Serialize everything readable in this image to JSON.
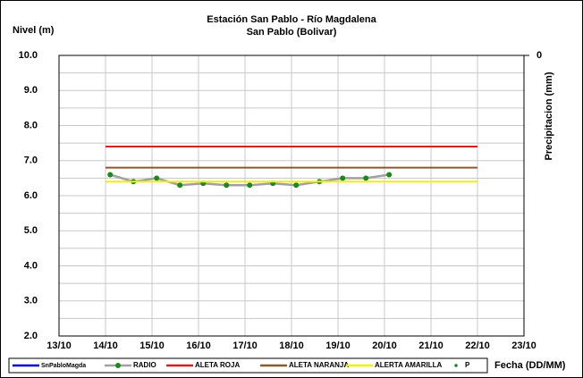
{
  "chart_data": {
    "type": "line",
    "title": "Estación San Pablo - Río Magdalena",
    "subtitle": "San Pablo (Bolivar)",
    "y_label": "Nivel (m)",
    "y2_label": "Precipitacion (mm)",
    "x_label": "Fecha (DD/MM)",
    "xlim": [
      13,
      23
    ],
    "xticks": [
      {
        "value": 13,
        "label": "13/10"
      },
      {
        "value": 14,
        "label": "14/10"
      },
      {
        "value": 15,
        "label": "15/10"
      },
      {
        "value": 16,
        "label": "16/10"
      },
      {
        "value": 17,
        "label": "17/10"
      },
      {
        "value": 18,
        "label": "18/10"
      },
      {
        "value": 19,
        "label": "19/10"
      },
      {
        "value": 20,
        "label": "20/10"
      },
      {
        "value": 21,
        "label": "21/10"
      },
      {
        "value": 22,
        "label": "22/10"
      },
      {
        "value": 23,
        "label": "23/10"
      }
    ],
    "ylim": [
      2,
      10
    ],
    "yticks": [
      {
        "value": 2,
        "label": "2.0"
      },
      {
        "value": 3,
        "label": "3.0"
      },
      {
        "value": 4,
        "label": "4.0"
      },
      {
        "value": 5,
        "label": "5.0"
      },
      {
        "value": 6,
        "label": "6.0"
      },
      {
        "value": 7,
        "label": "7.0"
      },
      {
        "value": 8,
        "label": "8.0"
      },
      {
        "value": 9,
        "label": "9.0"
      },
      {
        "value": 10,
        "label": "10.0"
      }
    ],
    "y2ticks": [
      0
    ],
    "grid": true,
    "legend": "bottom",
    "series": [
      {
        "name": "SnPabloMagda",
        "color": "#0000cc",
        "x": [],
        "values": []
      },
      {
        "name": "RADIO",
        "color": "#a0a0a0",
        "marker_color": "#1a8a1a",
        "x": [
          14.1,
          14.6,
          15.1,
          15.6,
          16.1,
          16.6,
          17.1,
          17.6,
          18.1,
          18.6,
          19.1,
          19.6,
          20.1
        ],
        "values": [
          6.6,
          6.4,
          6.5,
          6.3,
          6.35,
          6.3,
          6.3,
          6.35,
          6.3,
          6.4,
          6.5,
          6.5,
          6.6
        ]
      },
      {
        "name": "ALETA ROJA",
        "color": "#d42020",
        "x": [
          14,
          22
        ],
        "values": [
          7.4,
          7.4
        ]
      },
      {
        "name": "ALETA NARANJA",
        "color": "#8b5a2b",
        "x": [
          14,
          22
        ],
        "values": [
          6.8,
          6.8
        ]
      },
      {
        "name": "ALERTA AMARILLA",
        "color": "#f0f000",
        "x": [
          14,
          22
        ],
        "values": [
          6.4,
          6.4
        ]
      },
      {
        "name": "P",
        "color": "#1a8a1a",
        "x": [],
        "values": []
      }
    ]
  }
}
